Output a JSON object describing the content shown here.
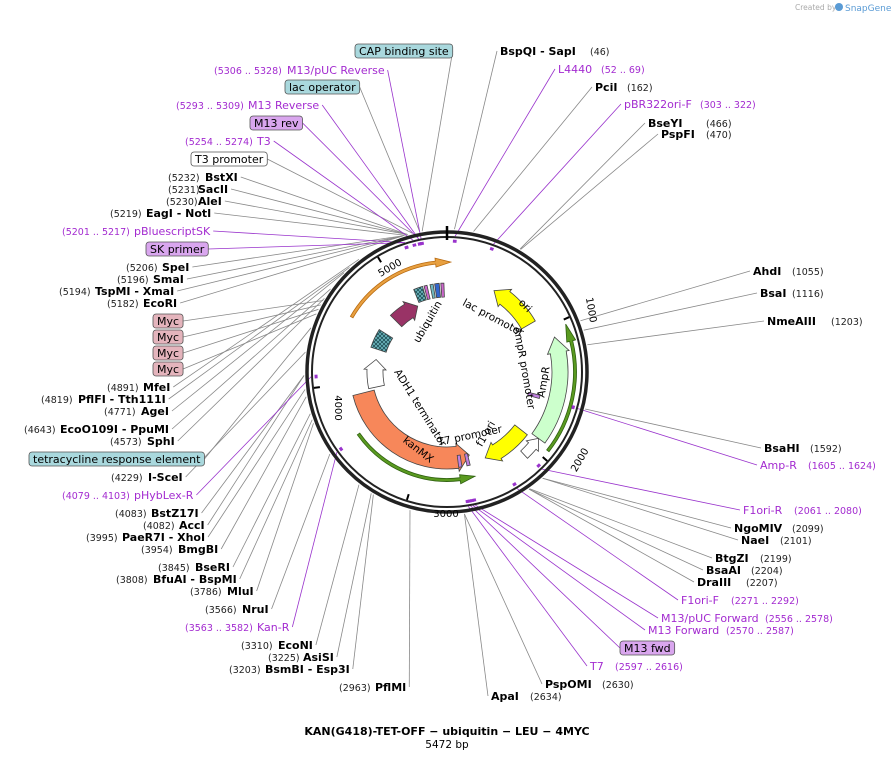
{
  "header": {
    "credit": "Created by",
    "brand": "SnapGene"
  },
  "annotations": [
    {
      "name": "CAP binding site"
    },
    {
      "name": "BspQI  - SapI",
      "position": "(46)"
    },
    {
      "name": "M13/pUC Reverse",
      "position": "(5306 .. 5328)"
    },
    {
      "name": "L4440",
      "position": "(52 .. 69)"
    },
    {
      "name": "lac operator"
    },
    {
      "name": "PciI",
      "position": "(162)"
    },
    {
      "name": "M13 Reverse",
      "position": "(5293 .. 5309)"
    },
    {
      "name": "pBR322ori-F",
      "position": "(303 .. 322)"
    },
    {
      "name": "M13 rev"
    },
    {
      "name": "BseYI",
      "position": "(466)"
    },
    {
      "name": "T3",
      "position": "(5254 .. 5274)"
    },
    {
      "name": "PspFI",
      "position": "(470)"
    },
    {
      "name": "T3 promoter"
    },
    {
      "name": "BstXI",
      "position": "(5232)"
    },
    {
      "name": "SacII",
      "position": "(5231)"
    },
    {
      "name": "AleI",
      "position": "(5230)"
    },
    {
      "name": "EagI  - NotI",
      "position": "(5219)"
    },
    {
      "name": "pBluescriptSK",
      "position": "(5201 .. 5217)"
    },
    {
      "name": "SK primer"
    },
    {
      "name": "SpeI",
      "position": "(5206)"
    },
    {
      "name": "SmaI",
      "position": "(5196)"
    },
    {
      "name": "TspMI  - XmaI",
      "position": "(5194)"
    },
    {
      "name": "EcoRI",
      "position": "(5182)"
    },
    {
      "name": "Myc"
    },
    {
      "name": "Myc"
    },
    {
      "name": "Myc"
    },
    {
      "name": "Myc"
    },
    {
      "name": "MfeI",
      "position": "(4891)"
    },
    {
      "name": "PflFI  - Tth111I",
      "position": "(4819)"
    },
    {
      "name": "AgeI",
      "position": "(4771)"
    },
    {
      "name": "EcoO109I  - PpuMI",
      "position": "(4643)"
    },
    {
      "name": "SphI",
      "position": "(4573)"
    },
    {
      "name": "tetracycline response element"
    },
    {
      "name": "I-SceI",
      "position": "(4229)"
    },
    {
      "name": "pHybLex-R",
      "position": "(4079 .. 4103)"
    },
    {
      "name": "BstZ17I",
      "position": "(4083)"
    },
    {
      "name": "AccI",
      "position": "(4082)"
    },
    {
      "name": "PaeR7I  - XhoI",
      "position": "(3995)"
    },
    {
      "name": "BmgBI",
      "position": "(3954)"
    },
    {
      "name": "BseRI",
      "position": "(3845)"
    },
    {
      "name": "BfuAI  - BspMI",
      "position": "(3808)"
    },
    {
      "name": "MluI",
      "position": "(3786)"
    },
    {
      "name": "NruI",
      "position": "(3566)"
    },
    {
      "name": "Kan-R",
      "position": "(3563 .. 3582)"
    },
    {
      "name": "EcoNI",
      "position": "(3310)"
    },
    {
      "name": "AsiSI",
      "position": "(3225)"
    },
    {
      "name": "BsmBI  - Esp3I",
      "position": "(3203)"
    },
    {
      "name": "PflMI",
      "position": "(2963)"
    },
    {
      "name": "AhdI",
      "position": "(1055)"
    },
    {
      "name": "BsaI",
      "position": "(1116)"
    },
    {
      "name": "NmeAIII",
      "position": "(1203)"
    },
    {
      "name": "BsaHI",
      "position": "(1592)"
    },
    {
      "name": "Amp-R",
      "position": "(1605 .. 1624)"
    },
    {
      "name": "F1ori-R",
      "position": "(2061 .. 2080)"
    },
    {
      "name": "NgoMIV",
      "position": "(2099)"
    },
    {
      "name": "NaeI",
      "position": "(2101)"
    },
    {
      "name": "BtgZI",
      "position": "(2199)"
    },
    {
      "name": "BsaAI",
      "position": "(2204)"
    },
    {
      "name": "DraIII",
      "position": "(2207)"
    },
    {
      "name": "F1ori-F",
      "position": "(2271 .. 2292)"
    },
    {
      "name": "M13/pUC Forward",
      "position": "(2556 .. 2578)"
    },
    {
      "name": "M13 Forward",
      "position": "(2570 .. 2587)"
    },
    {
      "name": "M13 fwd"
    },
    {
      "name": "T7",
      "position": "(2597 .. 2616)"
    },
    {
      "name": "PspOMI",
      "position": "(2630)"
    },
    {
      "name": "ApaI",
      "position": "(2634)"
    }
  ],
  "features": [
    "ori",
    "lac promoter",
    "AmpR promoter",
    "AmpR",
    "f1 ori",
    "T7 promoter",
    "kanMX",
    "ADH1 terminator",
    "ubiquitin"
  ],
  "ring_ticks": [
    "1000",
    "2000",
    "3000",
    "4000",
    "5000"
  ],
  "footer": {
    "title": "KAN(G418)-TET-OFF − ubiquitin − LEU − 4MYC",
    "size": "5472 bp"
  }
}
